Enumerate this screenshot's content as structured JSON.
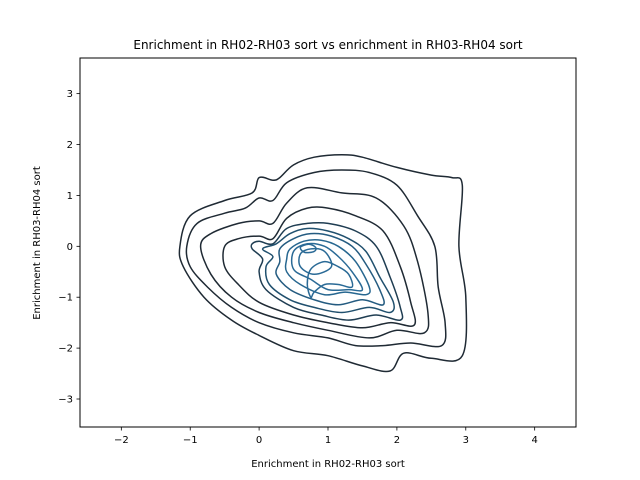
{
  "chart_data": {
    "type": "contour",
    "title": "Enrichment in RH02-RH03 sort vs enrichment in RH03-RH04 sort",
    "xlabel": "Enrichment in RH02-RH03 sort",
    "ylabel": "Enrichment in RH03-RH04 sort",
    "xlim": [
      -2.6,
      4.6
    ],
    "ylim": [
      -3.55,
      3.7
    ],
    "xticks": [
      -2,
      -1,
      0,
      1,
      2,
      3,
      4
    ],
    "yticks": [
      -3,
      -2,
      -1,
      0,
      1,
      2,
      3
    ],
    "grid": false,
    "legend": "none",
    "colors": {
      "outer": "#1f2a34",
      "inner": "#2a6a96"
    },
    "contour_levels": [
      {
        "level": 1,
        "color": "#1f2a34",
        "points": [
          [
            -1.15,
            0.0
          ],
          [
            -1.0,
            0.6
          ],
          [
            -0.5,
            0.9
          ],
          [
            -0.1,
            1.05
          ],
          [
            0.0,
            1.35
          ],
          [
            0.2,
            1.3
          ],
          [
            0.3,
            1.35
          ],
          [
            0.5,
            1.6
          ],
          [
            0.8,
            1.75
          ],
          [
            1.2,
            1.8
          ],
          [
            1.5,
            1.75
          ],
          [
            2.0,
            1.55
          ],
          [
            2.5,
            1.4
          ],
          [
            2.8,
            1.35
          ],
          [
            2.95,
            1.2
          ],
          [
            2.9,
            0.0
          ],
          [
            3.0,
            -1.0
          ],
          [
            2.95,
            -2.15
          ],
          [
            2.5,
            -2.2
          ],
          [
            2.1,
            -2.1
          ],
          [
            1.9,
            -2.45
          ],
          [
            1.5,
            -2.35
          ],
          [
            1.0,
            -2.15
          ],
          [
            0.5,
            -2.05
          ],
          [
            0.0,
            -1.75
          ],
          [
            -0.4,
            -1.45
          ],
          [
            -0.8,
            -1.0
          ],
          [
            -1.1,
            -0.4
          ]
        ]
      },
      {
        "level": 2,
        "color": "#1f2a34",
        "points": [
          [
            -1.05,
            0.0
          ],
          [
            -0.9,
            0.45
          ],
          [
            -0.5,
            0.65
          ],
          [
            -0.2,
            0.75
          ],
          [
            0.0,
            0.95
          ],
          [
            0.2,
            0.9
          ],
          [
            0.4,
            1.25
          ],
          [
            0.8,
            1.45
          ],
          [
            1.2,
            1.5
          ],
          [
            1.6,
            1.45
          ],
          [
            2.0,
            1.2
          ],
          [
            2.3,
            0.6
          ],
          [
            2.55,
            0.0
          ],
          [
            2.6,
            -0.8
          ],
          [
            2.7,
            -1.5
          ],
          [
            2.65,
            -1.95
          ],
          [
            2.2,
            -1.9
          ],
          [
            1.8,
            -1.95
          ],
          [
            1.4,
            -1.95
          ],
          [
            1.0,
            -1.8
          ],
          [
            0.5,
            -1.7
          ],
          [
            0.0,
            -1.5
          ],
          [
            -0.4,
            -1.2
          ],
          [
            -0.75,
            -0.8
          ],
          [
            -1.0,
            -0.4
          ]
        ]
      },
      {
        "level": 3,
        "color": "#1f2a34",
        "points": [
          [
            -0.85,
            0.0
          ],
          [
            -0.7,
            0.25
          ],
          [
            -0.3,
            0.45
          ],
          [
            0.0,
            0.5
          ],
          [
            0.2,
            0.45
          ],
          [
            0.4,
            0.85
          ],
          [
            0.7,
            1.15
          ],
          [
            1.2,
            1.05
          ],
          [
            1.7,
            0.95
          ],
          [
            2.1,
            0.4
          ],
          [
            2.3,
            -0.3
          ],
          [
            2.45,
            -1.3
          ],
          [
            2.4,
            -1.7
          ],
          [
            2.0,
            -1.65
          ],
          [
            1.6,
            -1.8
          ],
          [
            1.0,
            -1.65
          ],
          [
            0.5,
            -1.5
          ],
          [
            0.0,
            -1.3
          ],
          [
            -0.4,
            -1.0
          ],
          [
            -0.7,
            -0.55
          ]
        ]
      },
      {
        "level": 4,
        "color": "#1f2a34",
        "points": [
          [
            -0.5,
            0.0
          ],
          [
            -0.3,
            0.15
          ],
          [
            0.0,
            0.2
          ],
          [
            0.2,
            0.15
          ],
          [
            0.4,
            0.55
          ],
          [
            0.7,
            0.75
          ],
          [
            1.0,
            0.75
          ],
          [
            1.4,
            0.6
          ],
          [
            1.8,
            0.3
          ],
          [
            2.05,
            -0.4
          ],
          [
            2.2,
            -1.1
          ],
          [
            2.25,
            -1.55
          ],
          [
            1.9,
            -1.5
          ],
          [
            1.5,
            -1.6
          ],
          [
            1.0,
            -1.5
          ],
          [
            0.5,
            -1.35
          ],
          [
            0.0,
            -1.1
          ],
          [
            -0.3,
            -0.75
          ],
          [
            -0.5,
            -0.4
          ]
        ]
      },
      {
        "level": 5,
        "color": "#1f3d52",
        "points": [
          [
            -0.1,
            0.05
          ],
          [
            0.0,
            0.1
          ],
          [
            0.2,
            0.05
          ],
          [
            0.4,
            0.35
          ],
          [
            0.7,
            0.45
          ],
          [
            1.0,
            0.45
          ],
          [
            1.4,
            0.3
          ],
          [
            1.7,
            0.0
          ],
          [
            1.9,
            -0.6
          ],
          [
            2.05,
            -1.2
          ],
          [
            2.05,
            -1.45
          ],
          [
            1.7,
            -1.35
          ],
          [
            1.3,
            -1.45
          ],
          [
            0.9,
            -1.35
          ],
          [
            0.5,
            -1.2
          ],
          [
            0.1,
            -0.85
          ],
          [
            0.0,
            -0.5
          ],
          [
            0.05,
            -0.25
          ],
          [
            -0.1,
            -0.05
          ]
        ]
      },
      {
        "level": 6,
        "color": "#20506e",
        "points": [
          [
            0.05,
            -0.05
          ],
          [
            0.25,
            0.05
          ],
          [
            0.45,
            0.25
          ],
          [
            0.7,
            0.35
          ],
          [
            1.0,
            0.3
          ],
          [
            1.3,
            0.15
          ],
          [
            1.55,
            -0.1
          ],
          [
            1.75,
            -0.6
          ],
          [
            1.95,
            -1.1
          ],
          [
            1.9,
            -1.3
          ],
          [
            1.6,
            -1.2
          ],
          [
            1.2,
            -1.3
          ],
          [
            0.8,
            -1.2
          ],
          [
            0.45,
            -1.05
          ],
          [
            0.15,
            -0.75
          ],
          [
            0.1,
            -0.4
          ],
          [
            0.2,
            -0.2
          ]
        ]
      },
      {
        "level": 7,
        "color": "#245b80",
        "points": [
          [
            0.3,
            -0.05
          ],
          [
            0.5,
            0.15
          ],
          [
            0.75,
            0.25
          ],
          [
            1.05,
            0.2
          ],
          [
            1.35,
            0.0
          ],
          [
            1.55,
            -0.35
          ],
          [
            1.75,
            -0.85
          ],
          [
            1.8,
            -1.15
          ],
          [
            1.5,
            -1.05
          ],
          [
            1.15,
            -1.15
          ],
          [
            0.8,
            -1.05
          ],
          [
            0.45,
            -0.85
          ],
          [
            0.25,
            -0.55
          ],
          [
            0.3,
            -0.3
          ]
        ]
      },
      {
        "level": 8,
        "color": "#276790",
        "points": [
          [
            0.45,
            -0.05
          ],
          [
            0.65,
            0.1
          ],
          [
            0.9,
            0.12
          ],
          [
            1.15,
            0.0
          ],
          [
            1.4,
            -0.3
          ],
          [
            1.6,
            -0.8
          ],
          [
            1.55,
            -0.95
          ],
          [
            1.25,
            -0.9
          ],
          [
            0.95,
            -0.95
          ],
          [
            0.6,
            -0.75
          ],
          [
            0.4,
            -0.5
          ],
          [
            0.4,
            -0.25
          ]
        ]
      },
      {
        "level": 9,
        "color": "#2a6a96",
        "points": [
          [
            0.5,
            -0.1
          ],
          [
            0.7,
            0.05
          ],
          [
            0.95,
            0.0
          ],
          [
            1.15,
            -0.2
          ],
          [
            1.35,
            -0.5
          ],
          [
            1.5,
            -0.85
          ],
          [
            1.3,
            -0.85
          ],
          [
            1.0,
            -0.85
          ],
          [
            0.75,
            -0.65
          ],
          [
            0.5,
            -0.45
          ]
        ]
      },
      {
        "level": 10,
        "color": "#2a6a96",
        "points": [
          [
            0.6,
            -0.15
          ],
          [
            0.75,
            -0.05
          ],
          [
            0.95,
            -0.1
          ],
          [
            1.05,
            -0.4
          ],
          [
            0.8,
            -0.55
          ],
          [
            0.6,
            -0.4
          ]
        ]
      },
      {
        "level": 11,
        "color": "#2a6a96",
        "points": [
          [
            0.6,
            -0.02
          ],
          [
            0.72,
            0.04
          ],
          [
            0.82,
            -0.02
          ],
          [
            0.8,
            -0.1
          ],
          [
            0.66,
            -0.12
          ]
        ]
      },
      {
        "level": 12,
        "color": "#2a6a96",
        "points": [
          [
            0.75,
            -0.45
          ],
          [
            0.95,
            -0.3
          ],
          [
            1.15,
            -0.4
          ],
          [
            1.3,
            -0.55
          ],
          [
            1.35,
            -0.8
          ],
          [
            1.15,
            -0.75
          ],
          [
            0.95,
            -0.75
          ],
          [
            0.8,
            -0.9
          ],
          [
            0.75,
            -1.0
          ],
          [
            0.7,
            -0.75
          ]
        ]
      }
    ]
  }
}
